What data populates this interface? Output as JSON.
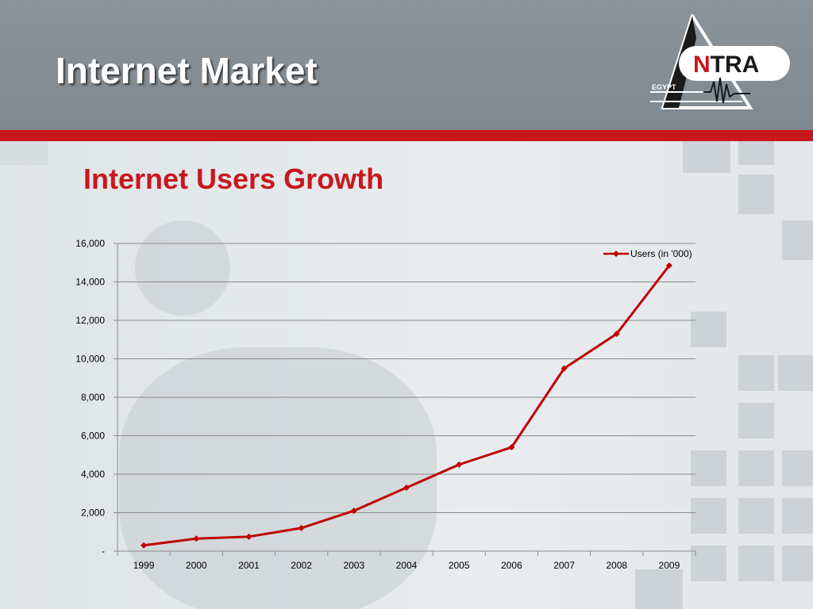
{
  "slide": {
    "title": "Internet Market"
  },
  "logo": {
    "name": "NTRA",
    "sub": "EGYPT"
  },
  "colors": {
    "header_bg": "#848e94",
    "accent_red": "#c8171e",
    "line": "#c00000",
    "grid": "#8c8c8c"
  },
  "chart_data": {
    "type": "line",
    "title": "Internet Users Growth",
    "categories": [
      "1999",
      "2000",
      "2001",
      "2002",
      "2003",
      "2004",
      "2005",
      "2006",
      "2007",
      "2008",
      "2009"
    ],
    "series": [
      {
        "name": "Users (in '000)",
        "values": [
          300,
          650,
          750,
          1200,
          2100,
          3300,
          4500,
          5400,
          9500,
          11300,
          14850
        ]
      }
    ],
    "ylim": [
      0,
      16000
    ],
    "yticks": [
      0,
      2000,
      4000,
      6000,
      8000,
      10000,
      12000,
      14000,
      16000
    ],
    "ytick_labels": [
      "-",
      "2,000",
      "4,000",
      "6,000",
      "8,000",
      "10,000",
      "12,000",
      "14,000",
      "16,000"
    ],
    "grid": true,
    "legend_position": "top-right",
    "marker": "diamond"
  }
}
